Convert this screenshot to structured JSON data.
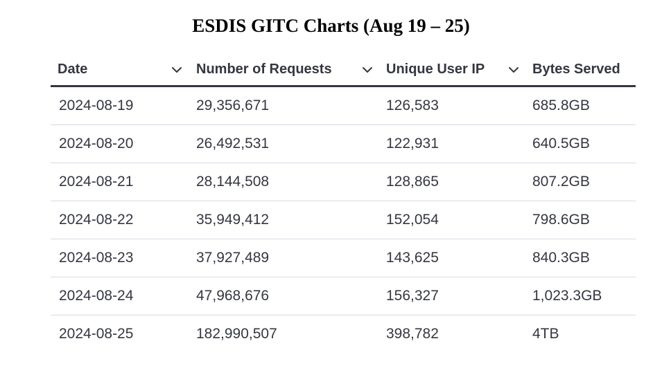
{
  "title": "ESDIS GITC Charts (Aug 19 – 25)",
  "table": {
    "columns": [
      {
        "label": "Date",
        "sortable": true
      },
      {
        "label": "Number of Requests",
        "sortable": true
      },
      {
        "label": "Unique User IP",
        "sortable": true
      },
      {
        "label": "Bytes Served",
        "sortable": false
      }
    ],
    "rows": [
      {
        "date": "2024-08-19",
        "requests": "29,356,671",
        "unique_ip": "126,583",
        "bytes": "685.8GB"
      },
      {
        "date": "2024-08-20",
        "requests": "26,492,531",
        "unique_ip": "122,931",
        "bytes": "640.5GB"
      },
      {
        "date": "2024-08-21",
        "requests": "28,144,508",
        "unique_ip": "128,865",
        "bytes": "807.2GB"
      },
      {
        "date": "2024-08-22",
        "requests": "35,949,412",
        "unique_ip": "152,054",
        "bytes": "798.6GB"
      },
      {
        "date": "2024-08-23",
        "requests": "37,927,489",
        "unique_ip": "143,625",
        "bytes": "840.3GB"
      },
      {
        "date": "2024-08-24",
        "requests": "47,968,676",
        "unique_ip": "156,327",
        "bytes": "1,023.3GB"
      },
      {
        "date": "2024-08-25",
        "requests": "182,990,507",
        "unique_ip": "398,782",
        "bytes": "4TB"
      }
    ]
  },
  "colors": {
    "text": "#343741",
    "header_rule": "#343741",
    "row_divider": "#d3dae6",
    "title": "#000000"
  },
  "icons": {
    "sort_toggle": "chevron-down-icon"
  }
}
